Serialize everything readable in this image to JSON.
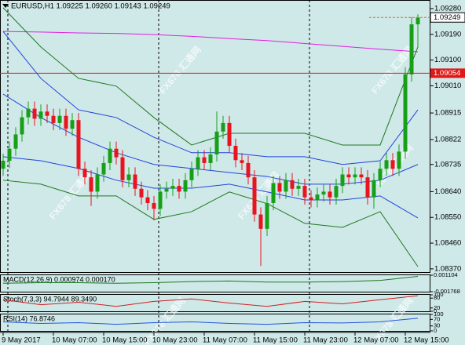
{
  "chart_data": {
    "type": "candlestick",
    "title": "EURUSD,H1  1.09225 1.09260 1.09143 1.09249",
    "open": [
      1.0872,
      1.08748,
      1.0879,
      1.0884,
      1.089,
      1.0893,
      1.08895,
      1.0892,
      1.08905,
      1.0888,
      1.08905,
      1.0886,
      1.0889,
      1.0872,
      1.0869,
      1.0864,
      1.087,
      1.0874,
      1.0879,
      1.0876,
      1.0868,
      1.087,
      1.0865,
      1.0862,
      1.086,
      1.0858,
      1.0864,
      1.0865,
      1.0866,
      1.0864,
      1.0868,
      1.0872,
      1.0876,
      1.0874,
      1.0877,
      1.0885,
      1.0888,
      1.088,
      1.0875,
      1.0874,
      1.0869,
      1.0856,
      1.0851,
      1.086,
      1.0867,
      1.0864,
      1.0868,
      1.0865,
      1.0866,
      1.0862,
      1.0861,
      1.0863,
      1.0864,
      1.0862,
      1.0866,
      1.087,
      1.0869,
      1.087,
      1.0869,
      1.0862,
      1.0868,
      1.0872,
      1.0875,
      1.0872,
      1.0878,
      1.0905,
      1.09225
    ],
    "high": [
      1.08773,
      1.08815,
      1.08865,
      1.08925,
      1.08955,
      1.08955,
      1.08945,
      1.08945,
      1.0893,
      1.0893,
      1.0893,
      1.08915,
      1.08915,
      1.08745,
      1.08715,
      1.08725,
      1.08765,
      1.08815,
      1.08815,
      1.08785,
      1.08725,
      1.08725,
      1.08675,
      1.08645,
      1.08625,
      1.08665,
      1.08675,
      1.08685,
      1.08685,
      1.08705,
      1.08745,
      1.08785,
      1.08785,
      1.08795,
      1.0892,
      1.08905,
      1.08905,
      1.08825,
      1.08775,
      1.08765,
      1.08715,
      1.08585,
      1.08625,
      1.08695,
      1.08695,
      1.08705,
      1.08705,
      1.08685,
      1.08685,
      1.08645,
      1.08655,
      1.08665,
      1.08665,
      1.08685,
      1.08725,
      1.08725,
      1.08725,
      1.08725,
      1.08715,
      1.08705,
      1.08745,
      1.08775,
      1.08775,
      1.08805,
      1.09075,
      1.0925,
      1.0926
    ],
    "low": [
      1.08695,
      1.08723,
      1.08765,
      1.08815,
      1.08875,
      1.0887,
      1.0887,
      1.0888,
      1.08855,
      1.08855,
      1.08835,
      1.08835,
      1.08695,
      1.08665,
      1.0859,
      1.08615,
      1.08675,
      1.08715,
      1.08735,
      1.08655,
      1.08655,
      1.08625,
      1.08595,
      1.08575,
      1.0854,
      1.08555,
      1.08615,
      1.08625,
      1.08615,
      1.08615,
      1.08655,
      1.08695,
      1.08715,
      1.08715,
      1.08745,
      1.08825,
      1.08775,
      1.08725,
      1.08715,
      1.08665,
      1.08535,
      1.0838,
      1.08485,
      1.08575,
      1.08615,
      1.08615,
      1.08625,
      1.08625,
      1.08595,
      1.08585,
      1.08585,
      1.08605,
      1.08595,
      1.08595,
      1.08635,
      1.08665,
      1.08665,
      1.08665,
      1.08595,
      1.0858,
      1.08655,
      1.08695,
      1.08695,
      1.08695,
      1.08755,
      1.09025,
      1.09143
    ],
    "close": [
      1.08748,
      1.0879,
      1.0884,
      1.089,
      1.0893,
      1.08895,
      1.0892,
      1.08905,
      1.0888,
      1.08905,
      1.0886,
      1.0889,
      1.0872,
      1.0869,
      1.0864,
      1.087,
      1.0874,
      1.0879,
      1.0876,
      1.0868,
      1.087,
      1.0865,
      1.0862,
      1.086,
      1.0858,
      1.0864,
      1.0865,
      1.0866,
      1.0864,
      1.0868,
      1.0872,
      1.0876,
      1.0874,
      1.0877,
      1.0885,
      1.0888,
      1.088,
      1.0875,
      1.0874,
      1.0869,
      1.0856,
      1.0851,
      1.086,
      1.0867,
      1.0864,
      1.0868,
      1.0865,
      1.0866,
      1.0862,
      1.0861,
      1.0863,
      1.0864,
      1.0862,
      1.0866,
      1.087,
      1.0869,
      1.087,
      1.0869,
      1.0862,
      1.0868,
      1.0872,
      1.0875,
      1.0872,
      1.0878,
      1.0905,
      1.09225,
      1.09249
    ],
    "up_color": "#17a017",
    "down_color": "#e8141e",
    "ylim": [
      1.08356,
      1.0931
    ],
    "yticks": [
      {
        "value": 1.0928,
        "label": "1.09280"
      },
      {
        "value": 1.0919,
        "label": "1.09190"
      },
      {
        "value": 1.091,
        "label": "1.09100"
      },
      {
        "value": 1.0901,
        "label": "1.09010"
      },
      {
        "value": 1.08915,
        "label": "1.08915"
      },
      {
        "value": 1.08822,
        "label": "1.08822"
      },
      {
        "value": 1.08735,
        "label": "1.08735"
      },
      {
        "value": 1.0864,
        "label": "1.08640"
      },
      {
        "value": 1.0855,
        "label": "1.08550"
      },
      {
        "value": 1.0846,
        "label": "1.08460"
      },
      {
        "value": 1.0837,
        "label": "1.08370"
      }
    ],
    "xticks": [
      "9 May 2017",
      "10 May 07:00",
      "10 May 15:00",
      "10 May 23:00",
      "11 May 07:00",
      "11 May 15:00",
      "11 May 23:00",
      "12 May 07:00",
      "12 May 15:00"
    ],
    "overlay_x": [
      0,
      6,
      12,
      18,
      24,
      30,
      36,
      42,
      48,
      54,
      60,
      66
    ],
    "overlays": [
      {
        "color": "#e020e0",
        "values": [
          1.092,
          1.09198,
          1.09195,
          1.09193,
          1.09189,
          1.09183,
          1.09175,
          1.09168,
          1.09158,
          1.09148,
          1.09138,
          1.09129
        ]
      },
      {
        "color": "#1e7a1e",
        "values": [
          1.09283,
          1.09146,
          1.09036,
          1.09009,
          1.08899,
          1.08803,
          1.08844,
          1.08844,
          1.08844,
          1.08803,
          1.08803,
          1.09146
        ]
      },
      {
        "color": "#1e7a1e",
        "values": [
          1.0868,
          1.08666,
          1.08625,
          1.08625,
          1.08543,
          1.0857,
          1.08639,
          1.08598,
          1.08529,
          1.08515,
          1.0857,
          1.08378
        ]
      },
      {
        "color": "#2244dd",
        "values": [
          1.092,
          1.09036,
          1.08926,
          1.08899,
          1.0883,
          1.08776,
          1.08776,
          1.08762,
          1.08762,
          1.08735,
          1.08748,
          1.08926
        ]
      },
      {
        "color": "#2244dd",
        "values": [
          1.08981,
          1.08899,
          1.0883,
          1.08776,
          1.08735,
          1.08721,
          1.08707,
          1.08693,
          1.08666,
          1.08666,
          1.0868,
          1.08735
        ]
      },
      {
        "color": "#2244dd",
        "values": [
          1.08762,
          1.08748,
          1.08721,
          1.0868,
          1.08652,
          1.08652,
          1.08666,
          1.08639,
          1.08611,
          1.08611,
          1.08625,
          1.08548
        ]
      }
    ],
    "hline": {
      "value": 1.09054,
      "label": "1.09054",
      "color": "#e01818"
    },
    "last_price": {
      "value": 1.09249,
      "label": "1.09249",
      "color": "#e07020"
    },
    "indicators": [
      {
        "label": "MACD(12,26,9) 0.000974 0.000170",
        "ylim": [
          -0.001768,
          0.001104
        ],
        "yticks": [
          {
            "value": 0.001104,
            "label": "0.001104"
          },
          {
            "value": -0.001768,
            "label": "-0.001768"
          }
        ],
        "series": [
          {
            "color": "#1e7a1e",
            "values": [
              -0.0003,
              -0.0002,
              -0.0002,
              -0.0003,
              -0.0002,
              0,
              0.0001,
              -0.0001,
              -0.0001,
              0,
              0.0002,
              0.0009
            ]
          }
        ]
      },
      {
        "label": "Stoch(7,3,3) 94.7944 89.3490",
        "ylim": [
          0,
          100
        ],
        "yticks": [
          100,
          80,
          20,
          0
        ],
        "series": [
          {
            "color": "#d02020",
            "values": [
              70,
              40,
              55,
              30,
              60,
              75,
              50,
              30,
              60,
              45,
              70,
              94.7944
            ]
          }
        ]
      },
      {
        "label": "RSI(14) 76.8746",
        "ylim": [
          0,
          100
        ],
        "yticks": [
          100,
          70,
          30,
          0
        ],
        "series": [
          {
            "color": "#2255dd",
            "values": [
              55,
              45,
              50,
              40,
              50,
              55,
              45,
              40,
              50,
              48,
              55,
              76.8746
            ]
          }
        ]
      }
    ],
    "watermark": "FX678 汇通网"
  }
}
